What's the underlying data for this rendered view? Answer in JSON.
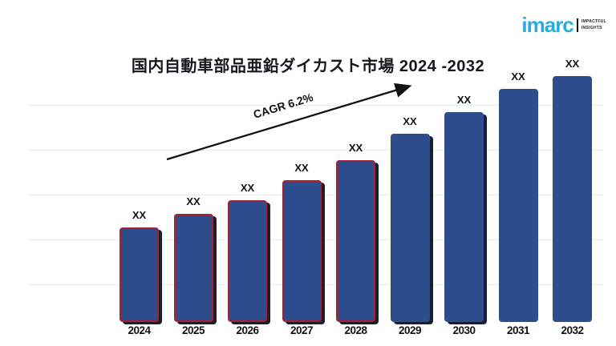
{
  "header": {
    "title": "国内自動車部品亜鉛ダイカスト市場 2024 -2032",
    "logo": {
      "brand": "imarc",
      "tagline_line1": "IMPACTFUL",
      "tagline_line2": "INSIGHTS",
      "brand_color": "#29ABE2"
    }
  },
  "annotation": {
    "cagr_label": "CAGR 6.2%"
  },
  "chart_data": {
    "type": "bar",
    "title": "国内自動車部品亜鉛ダイカスト市場 2024 -2032",
    "xlabel": "",
    "ylabel": "",
    "grid": true,
    "y_axis_tick_labels_visible": false,
    "annotation": "CAGR 6.2%",
    "categories": [
      "2024",
      "2025",
      "2026",
      "2027",
      "2028",
      "2029",
      "2030",
      "2031",
      "2032"
    ],
    "value_labels": [
      "XX",
      "XX",
      "XX",
      "XX",
      "XX",
      "XX",
      "XX",
      "XX",
      "XX"
    ],
    "values_relative_pct": [
      38.4,
      44.0,
      49.5,
      57.7,
      65.8,
      76.5,
      85.3,
      94.8,
      100
    ],
    "bar_color": "#2E4D8C",
    "highlight_border_color": "#A32035",
    "bars": [
      {
        "year": "2024",
        "label": "XX",
        "height_pct": 38.4,
        "red_border": true,
        "shadow": true
      },
      {
        "year": "2025",
        "label": "XX",
        "height_pct": 44.0,
        "red_border": true,
        "shadow": true
      },
      {
        "year": "2026",
        "label": "XX",
        "height_pct": 49.5,
        "red_border": true,
        "shadow": true
      },
      {
        "year": "2027",
        "label": "XX",
        "height_pct": 57.7,
        "red_border": true,
        "shadow": true
      },
      {
        "year": "2028",
        "label": "XX",
        "height_pct": 65.8,
        "red_border": true,
        "shadow": true
      },
      {
        "year": "2029",
        "label": "XX",
        "height_pct": 76.5,
        "red_border": false,
        "shadow": true
      },
      {
        "year": "2030",
        "label": "XX",
        "height_pct": 85.3,
        "red_border": false,
        "shadow": true
      },
      {
        "year": "2031",
        "label": "XX",
        "height_pct": 94.8,
        "red_border": false,
        "shadow": false
      },
      {
        "year": "2032",
        "label": "XX",
        "height_pct": 100,
        "red_border": false,
        "shadow": false
      }
    ]
  }
}
